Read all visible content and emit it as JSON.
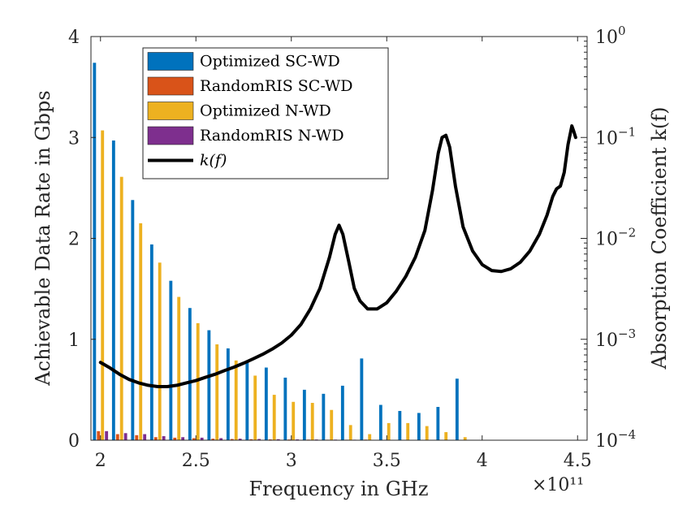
{
  "chart_data": {
    "type": "bar",
    "xlabel": "Frequency in GHz",
    "ylabel": "Achievable Data Rate in Gbps",
    "ylabel_right": "Absorption Coefficient k(f)",
    "x_multiplier": "×10¹¹",
    "xlim": [
      1.95,
      4.55
    ],
    "ylim": [
      0,
      4
    ],
    "ylim_right_log": [
      0.0001,
      1
    ],
    "x_ticks": [
      {
        "value": 2.0,
        "label": "2"
      },
      {
        "value": 2.5,
        "label": "2.5"
      },
      {
        "value": 3.0,
        "label": "3"
      },
      {
        "value": 3.5,
        "label": "3.5"
      },
      {
        "value": 4.0,
        "label": "4"
      },
      {
        "value": 4.5,
        "label": "4.5"
      }
    ],
    "y_ticks": [
      {
        "value": 0,
        "label": "0"
      },
      {
        "value": 1,
        "label": "1"
      },
      {
        "value": 2,
        "label": "2"
      },
      {
        "value": 3,
        "label": "3"
      },
      {
        "value": 4,
        "label": "4"
      }
    ],
    "y_right_ticks": [
      {
        "value": 0.0001,
        "base": "10",
        "exp": "−4"
      },
      {
        "value": 0.001,
        "base": "10",
        "exp": "−3"
      },
      {
        "value": 0.01,
        "base": "10",
        "exp": "−2"
      },
      {
        "value": 0.1,
        "base": "10",
        "exp": "−1"
      },
      {
        "value": 1,
        "base": "10",
        "exp": "0"
      }
    ],
    "categories": [
      2.0,
      2.1,
      2.2,
      2.3,
      2.4,
      2.5,
      2.6,
      2.7,
      2.8,
      2.9,
      3.0,
      3.1,
      3.2,
      3.3,
      3.4,
      3.5,
      3.6,
      3.7,
      3.8,
      3.9,
      4.0,
      4.1,
      4.2,
      4.3,
      4.4,
      4.5
    ],
    "series": [
      {
        "name": "Optimized SC-WD",
        "color": "#0072BD",
        "values": [
          3.74,
          2.97,
          2.38,
          1.94,
          1.58,
          1.31,
          1.09,
          0.91,
          0.77,
          0.72,
          0.62,
          0.5,
          0.46,
          0.54,
          0.81,
          0.35,
          0.29,
          0.27,
          0.33,
          0.61,
          0.0,
          0.0,
          0.0,
          0.0,
          0.0,
          0.0
        ]
      },
      {
        "name": "RandomRIS SC-WD",
        "color": "#D95319",
        "values": [
          0.09,
          0.06,
          0.05,
          0.03,
          0.025,
          0.02,
          0.015,
          0.012,
          0.01,
          0.008,
          0.007,
          0.006,
          0.005,
          0.005,
          0.006,
          0.004,
          0.003,
          0.003,
          0.003,
          0.004,
          0.0,
          0.0,
          0.0,
          0.0,
          0.0,
          0.0
        ]
      },
      {
        "name": "Optimized N-WD",
        "color": "#EDB120",
        "values": [
          3.07,
          2.61,
          2.15,
          1.76,
          1.42,
          1.16,
          0.95,
          0.79,
          0.64,
          0.45,
          0.38,
          0.37,
          0.3,
          0.15,
          0.06,
          0.17,
          0.17,
          0.14,
          0.08,
          0.03,
          0.0,
          0.0,
          0.0,
          0.0,
          0.0,
          0.0
        ]
      },
      {
        "name": "RandomRIS N-WD",
        "color": "#7E2F8E",
        "values": [
          0.09,
          0.07,
          0.06,
          0.04,
          0.03,
          0.025,
          0.02,
          0.015,
          0.012,
          0.01,
          0.008,
          0.007,
          0.006,
          0.005,
          0.004,
          0.004,
          0.003,
          0.003,
          0.003,
          0.003,
          0.0,
          0.0,
          0.0,
          0.0,
          0.0,
          0.0
        ]
      }
    ],
    "line": {
      "name": "k(f)",
      "color": "#000000",
      "axis": "right",
      "x": [
        2.0,
        2.05,
        2.1,
        2.15,
        2.2,
        2.25,
        2.3,
        2.35,
        2.4,
        2.45,
        2.5,
        2.55,
        2.6,
        2.65,
        2.7,
        2.75,
        2.8,
        2.85,
        2.9,
        2.95,
        3.0,
        3.05,
        3.1,
        3.15,
        3.2,
        3.23,
        3.25,
        3.27,
        3.3,
        3.33,
        3.36,
        3.4,
        3.45,
        3.5,
        3.55,
        3.6,
        3.65,
        3.7,
        3.74,
        3.77,
        3.79,
        3.81,
        3.83,
        3.86,
        3.9,
        3.95,
        4.0,
        4.05,
        4.1,
        4.15,
        4.2,
        4.25,
        4.3,
        4.34,
        4.37,
        4.39,
        4.41,
        4.43,
        4.45,
        4.47,
        4.48,
        4.49
      ],
      "y": [
        0.00059,
        0.00052,
        0.00045,
        0.0004,
        0.00037,
        0.00035,
        0.00034,
        0.00034,
        0.00035,
        0.00037,
        0.00039,
        0.00042,
        0.00045,
        0.00049,
        0.00053,
        0.00058,
        0.00064,
        0.00071,
        0.0008,
        0.00092,
        0.0011,
        0.0014,
        0.002,
        0.0032,
        0.0065,
        0.011,
        0.0135,
        0.011,
        0.006,
        0.0032,
        0.0024,
        0.002,
        0.002,
        0.0023,
        0.003,
        0.0042,
        0.0065,
        0.012,
        0.03,
        0.07,
        0.1,
        0.105,
        0.08,
        0.033,
        0.013,
        0.0075,
        0.0055,
        0.0048,
        0.0047,
        0.005,
        0.0058,
        0.0075,
        0.011,
        0.017,
        0.026,
        0.031,
        0.033,
        0.045,
        0.085,
        0.13,
        0.115,
        0.1
      ]
    },
    "legend": {
      "position": "top-left",
      "entries": [
        "Optimized SC-WD",
        "RandomRIS SC-WD",
        "Optimized N-WD",
        "RandomRIS N-WD",
        "k(f)"
      ]
    },
    "grid": false
  }
}
